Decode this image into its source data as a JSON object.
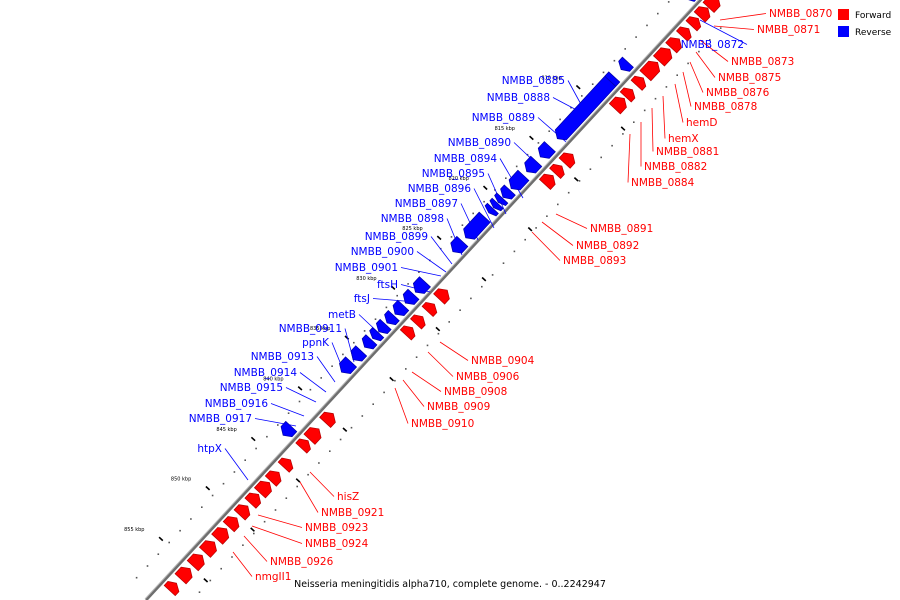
{
  "caption": "Neisseria meningitidis alpha710, complete genome. - 0..2242947",
  "colors": {
    "forward": "#ff0000",
    "reverse": "#0000ff",
    "backbone": "#808080"
  },
  "legend": [
    {
      "label": "Forward",
      "color": "#ff0000"
    },
    {
      "label": "Reverse",
      "color": "#0000ff"
    }
  ],
  "ticks": [
    "810 kbp",
    "815 kbp",
    "820 kbp",
    "825 kbp",
    "830 kbp",
    "835 kbp",
    "840 kbp",
    "845 kbp",
    "850 kbp",
    "855 kbp"
  ],
  "forward_genes": [
    "NMBB_0870",
    "NMBB_0871",
    "NMBB_0873",
    "NMBB_0875",
    "NMBB_0876",
    "NMBB_0878",
    "hemD",
    "hemX",
    "NMBB_0881",
    "NMBB_0882",
    "NMBB_0884",
    "NMBB_0891",
    "NMBB_0892",
    "NMBB_0893",
    "NMBB_0904",
    "NMBB_0906",
    "NMBB_0908",
    "NMBB_0909",
    "NMBB_0910",
    "hisZ",
    "NMBB_0921",
    "NMBB_0923",
    "NMBB_0924",
    "NMBB_0926",
    "nmgII1"
  ],
  "reverse_genes": [
    "NMBB_0872",
    "NMBB_0885",
    "NMBB_0888",
    "NMBB_0889",
    "NMBB_0890",
    "NMBB_0894",
    "NMBB_0895",
    "NMBB_0896",
    "NMBB_0897",
    "NMBB_0898",
    "NMBB_0899",
    "NMBB_0900",
    "NMBB_0901",
    "ftsH",
    "ftsJ",
    "metB",
    "NMBB_0911",
    "ppnK",
    "NMBB_0913",
    "NMBB_0914",
    "NMBB_0915",
    "NMBB_0916",
    "NMBB_0917",
    "htpX"
  ]
}
